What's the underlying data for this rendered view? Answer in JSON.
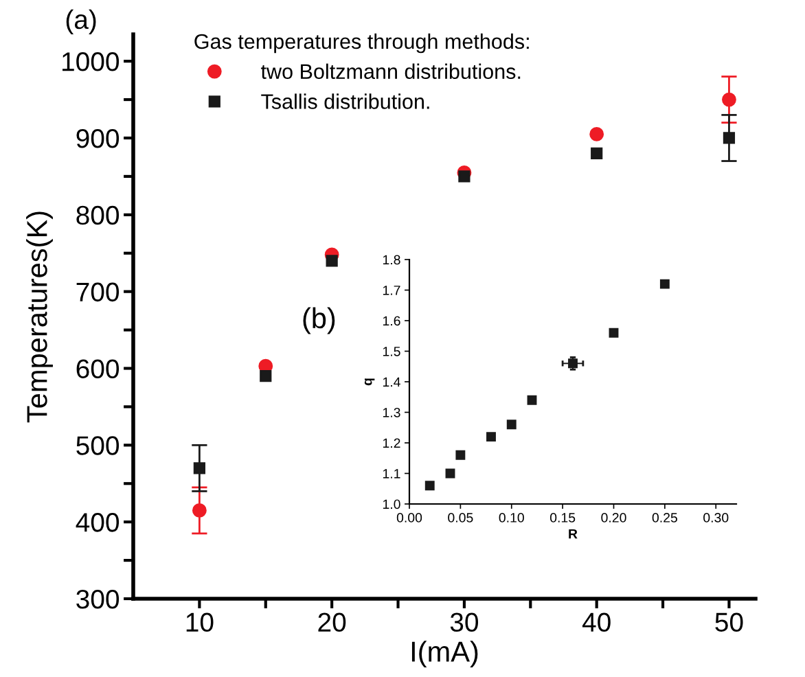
{
  "chart_data": [
    {
      "type": "scatter",
      "xlabel": "I(mA)",
      "ylabel": "Temperatures(K)",
      "legend_title": "Gas temperatures through methods:",
      "legend": "top left",
      "annotations": [
        "(a)"
      ],
      "xlim": [
        5,
        52
      ],
      "xticks": [
        10,
        {
          "value": 15,
          "label": null
        },
        20,
        {
          "value": 25,
          "label": null
        },
        30,
        {
          "value": 35,
          "label": null
        },
        40,
        {
          "value": 45,
          "label": null
        },
        50
      ],
      "ylim": [
        300,
        1035
      ],
      "yticks": [
        300,
        {
          "value": 350,
          "label": null
        },
        400,
        {
          "value": 450,
          "label": null
        },
        500,
        {
          "value": 550,
          "label": null
        },
        600,
        {
          "value": 650,
          "label": null
        },
        700,
        {
          "value": 750,
          "label": null
        },
        800,
        {
          "value": 850,
          "label": null
        },
        900,
        {
          "value": 950,
          "label": null
        },
        1000
      ],
      "x": [
        10,
        15,
        20,
        30,
        40,
        50
      ],
      "series": [
        {
          "name": "two Boltzmann distributions.",
          "color": "#ee1c25",
          "marker": "circle",
          "values": [
            415,
            603,
            748,
            855,
            905,
            950
          ],
          "errors": [
            30,
            null,
            null,
            null,
            null,
            30
          ]
        },
        {
          "name": "Tsallis distribution.",
          "color": "#1a1a1a",
          "marker": "square",
          "values": [
            470,
            590,
            740,
            850,
            880,
            900
          ],
          "errors": [
            30,
            null,
            null,
            null,
            null,
            30
          ]
        }
      ]
    },
    {
      "type": "scatter",
      "xlabel": "R",
      "ylabel": "q",
      "annotations": [
        "(b)"
      ],
      "legend": false,
      "xlim": [
        0,
        0.32
      ],
      "xticks": [
        {
          "value": 0,
          "label": "0.00"
        },
        {
          "value": 0.05,
          "label": "0.05"
        },
        {
          "value": 0.1,
          "label": "0.10"
        },
        {
          "value": 0.15,
          "label": "0.15"
        },
        {
          "value": 0.2,
          "label": "0.20"
        },
        {
          "value": 0.25,
          "label": "0.25"
        },
        {
          "value": 0.3,
          "label": "0.30"
        }
      ],
      "ylim": [
        1.0,
        1.8
      ],
      "yticks": [
        {
          "value": 1.0,
          "label": "1.0"
        },
        1.1,
        1.2,
        1.3,
        1.4,
        1.5,
        1.6,
        1.7,
        1.8
      ],
      "series": [
        {
          "color": "#1a1a1a",
          "marker": "square",
          "x": [
            0.02,
            0.04,
            0.05,
            0.08,
            0.1,
            0.12,
            0.16,
            0.2,
            0.25
          ],
          "values": [
            1.06,
            1.1,
            1.16,
            1.22,
            1.26,
            1.34,
            1.46,
            1.56,
            1.72
          ],
          "errors": [
            null,
            null,
            null,
            null,
            null,
            null,
            0.02,
            null,
            null
          ],
          "xerrors": [
            null,
            null,
            null,
            null,
            null,
            null,
            0.01,
            null,
            null
          ]
        }
      ]
    }
  ]
}
